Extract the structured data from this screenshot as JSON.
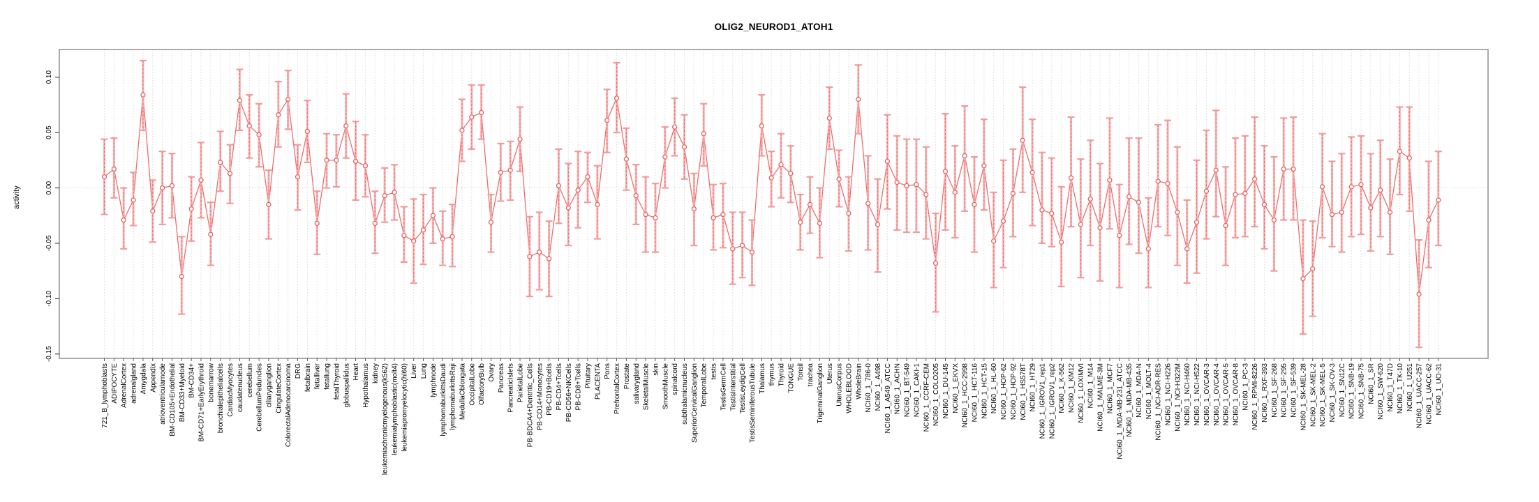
{
  "title": "OLIG2_NEUROD1_ATOH1",
  "y_axis": {
    "label": "activity",
    "ticks": [
      "0.10",
      "0.05",
      "0.00",
      "-0.05",
      "-0.10",
      "-0.15"
    ]
  },
  "colors": {
    "point_stroke": "#e85f5f",
    "segment": "#ef6b6b",
    "errorbar_stem": "#f8b0b0",
    "errorbar_dash": "#e96a6a",
    "errorbar_cap": "#f39b9b",
    "gridline": "#dadada",
    "zero_line": "#d9cfcf",
    "panel_border": "#8f8f8f",
    "axis_tick": "#444444",
    "text": "#000000",
    "background": "#ffffff"
  },
  "chart_data": {
    "type": "scatter",
    "subtype": "means-with-error-bars",
    "title": "OLIG2_NEUROD1_ATOH1",
    "xlabel": "",
    "ylabel": "activity",
    "ylim": [
      -0.155,
      0.125
    ],
    "yticks": [
      "0.10",
      "0.05",
      "0.00",
      "-0.05",
      "-0.10",
      "-0.15"
    ],
    "grid": {
      "vertical_per_category": true,
      "horizontal_zero_dotted": true
    },
    "legend": "none",
    "categories": [
      "721_B_lymphoblasts",
      "ADIPOCYTE",
      "AdrenalCortex",
      "adrenalgland",
      "Amygdala",
      "Appendix",
      "atrioventricularnode",
      "BM-CD105+Endothelial",
      "BM-CD33+Myeloid",
      "BM-CD34+",
      "BM-CD71+EarlyErythroid",
      "bonemarrow",
      "bronchialepithelialcells",
      "CardiacMyocytes",
      "caudatenucleus",
      "cerebellum",
      "CerebellumPeduncles",
      "ciliaryganglion",
      "CingulateCortex",
      "ColorectalAdenocarcinoma",
      "DRG",
      "fetalbrain",
      "fetalliver",
      "fetallung",
      "fetalThyroid",
      "globuspallidus",
      "Heart",
      "Hypothalamus",
      "kidney",
      "leukemiachronicmyelogenous(k562)",
      "leukemialymphoblastic(molt4)",
      "leukemiapromyelocytic(hl60)",
      "Liver",
      "Lung",
      "lymphnode",
      "lymphomaburkittsDaudi",
      "lymphomaburkittsRaji",
      "MedullaOblongata",
      "OccipitalLobe",
      "OlfactoryBulb",
      "Ovary",
      "Pancreas",
      "PancreaticIslets",
      "ParietalLobe",
      "PB-BDCA4+Dentritic_Cells",
      "PB-CD14+Monocytes",
      "PB-CD19+Bcells",
      "PB-CD4+Tcells",
      "PB-CD56+NKCells",
      "PB-CD8+Tcells",
      "Pituitary",
      "PLACENTA",
      "Pons",
      "PrefrontalCortex",
      "Prostate",
      "salivarygland",
      "SkeletalMuscle",
      "skin",
      "SmoothMuscle",
      "spinalcord",
      "subthalamicnucleus",
      "SuperiorCervicalGanglion",
      "TemporalLobe",
      "testis",
      "TestisGermCell",
      "TestisInterstitial",
      "TestisLeydigCell",
      "TestisSeminiferousTubule",
      "Thalamus",
      "thymus",
      "Thyroid",
      "TONGUE",
      "Tonsil",
      "trachea",
      "TrigeminalGanglion",
      "Uterus",
      "UterusCorpus",
      "WHOLEBLOOD",
      "WholeBrain",
      "NCI60_1_786-0",
      "NCI60_1_A498",
      "NCI60_1_A549_ATCC",
      "NCI60_1_ACHN",
      "NCI60_1_BT-549",
      "NCI60_1_CAKI-1",
      "NCI60_1_CCRF-CEM",
      "NCI60_1_COLO205",
      "NCI60_1_DU-145",
      "NCI60_1_EKVX",
      "NCI60_1_HCC-2998",
      "NCI60_1_HCT-116",
      "NCI60_1_HCT-15",
      "NCI60_1_HL-60",
      "NCI60_1_HOP-62",
      "NCI60_1_HOP-92",
      "NCI60_1_HS578T",
      "NCI60_1_HT29",
      "NCI60_1_IGROV1_rep1",
      "NCI60_1_IGROV1_rep2",
      "NCI60_1_K-562",
      "NCI60_1_KM12",
      "NCI60_1_LOXIMVI",
      "NCI60_1_M14",
      "NCI60_1_MALME-3M",
      "NCI60_1_MCF7",
      "NCI60_1_MDA-MB-231_ATCC",
      "NCI60_1_MDA-MB-435",
      "NCI60_1_MDA-N",
      "NCI60_1_MOLT-4",
      "NCI60_1_NCI-ADR-RES",
      "NCI60_1_NCI-H226",
      "NCI60_1_NCI-H322M",
      "NCI60_1_NCI-H460",
      "NCI60_1_NCI-H522",
      "NCI60_1_OVCAR-3",
      "NCI60_1_OVCAR-4",
      "NCI60_1_OVCAR-5",
      "NCI60_1_OVCAR-8",
      "NCI60_1_PC-3",
      "NCI60_1_RPMI-8226",
      "NCI60_1_RXF-393",
      "NCI60_1_SF-268",
      "NCI60_1_SF-295",
      "NCI60_1_SF-539",
      "NCI60_1_SK-MEL-28",
      "NCI60_1_SK-MEL-2",
      "NCI60_1_SK-MEL-5",
      "NCI60_1_SK-OV-3",
      "NCI60_1_SN12C",
      "NCI60_1_SNB-19",
      "NCI60_1_SNB-75",
      "NCI60_1_SR",
      "NCI60_1_SW-620",
      "NCI60_1_T47D",
      "NCI60_1_TK-10",
      "NCI60_1_U251",
      "NCI60_1_UACC-257",
      "NCI60_1_UACC-62",
      "NCI60_1_UO-31"
    ],
    "series": [
      {
        "name": "mean",
        "values": [
          0.01,
          0.017,
          -0.029,
          -0.011,
          0.084,
          -0.021,
          0.0,
          0.002,
          -0.08,
          -0.019,
          0.007,
          -0.042,
          0.023,
          0.013,
          0.079,
          0.056,
          0.048,
          -0.015,
          0.066,
          0.08,
          0.01,
          0.051,
          -0.032,
          0.025,
          0.025,
          0.056,
          0.024,
          0.02,
          -0.032,
          -0.007,
          -0.004,
          -0.043,
          -0.048,
          -0.038,
          -0.025,
          -0.046,
          -0.044,
          0.052,
          0.064,
          0.068,
          -0.031,
          0.014,
          0.016,
          0.044,
          -0.062,
          -0.058,
          -0.064,
          0.002,
          -0.018,
          -0.002,
          0.01,
          -0.015,
          0.061,
          0.081,
          0.026,
          -0.007,
          -0.024,
          -0.027,
          0.028,
          0.055,
          0.037,
          -0.019,
          0.049,
          -0.027,
          -0.024,
          -0.055,
          -0.052,
          -0.058,
          0.056,
          0.009,
          0.021,
          0.013,
          -0.031,
          -0.015,
          -0.032,
          0.063,
          0.008,
          -0.023,
          0.08,
          -0.014,
          -0.033,
          0.024,
          0.005,
          0.002,
          0.003,
          -0.006,
          -0.068,
          0.015,
          -0.004,
          0.029,
          -0.015,
          0.02,
          -0.048,
          -0.03,
          -0.005,
          0.043,
          0.014,
          -0.02,
          -0.023,
          -0.049,
          0.009,
          -0.033,
          -0.01,
          -0.036,
          0.007,
          -0.043,
          -0.008,
          -0.013,
          -0.055,
          0.006,
          0.004,
          -0.022,
          -0.055,
          -0.031,
          -0.003,
          0.016,
          -0.034,
          -0.006,
          -0.005,
          0.008,
          -0.015,
          -0.029,
          0.017,
          0.017,
          -0.082,
          -0.073,
          0.001,
          -0.024,
          -0.022,
          0.001,
          0.003,
          -0.018,
          -0.002,
          -0.022,
          0.033,
          0.027,
          -0.096,
          -0.029,
          -0.011
        ]
      },
      {
        "name": "lower_bound",
        "values": [
          -0.024,
          -0.009,
          -0.055,
          -0.034,
          0.052,
          -0.049,
          -0.033,
          -0.027,
          -0.114,
          -0.048,
          -0.027,
          -0.07,
          -0.003,
          -0.014,
          0.052,
          0.027,
          0.019,
          -0.046,
          0.037,
          0.053,
          -0.02,
          0.023,
          -0.06,
          0.0,
          0.001,
          0.027,
          -0.011,
          -0.008,
          -0.059,
          -0.031,
          -0.029,
          -0.067,
          -0.086,
          -0.069,
          -0.05,
          -0.07,
          -0.071,
          0.024,
          0.035,
          0.044,
          -0.058,
          -0.012,
          -0.011,
          0.015,
          -0.098,
          -0.092,
          -0.098,
          -0.032,
          -0.052,
          -0.036,
          -0.013,
          -0.046,
          0.032,
          0.05,
          -0.002,
          -0.033,
          -0.058,
          -0.058,
          0.0,
          0.029,
          0.008,
          -0.052,
          0.02,
          -0.056,
          -0.054,
          -0.087,
          -0.081,
          -0.088,
          0.029,
          -0.017,
          -0.009,
          -0.013,
          -0.056,
          -0.041,
          -0.063,
          0.035,
          -0.017,
          -0.057,
          0.049,
          -0.056,
          -0.076,
          -0.019,
          -0.038,
          -0.04,
          -0.04,
          -0.046,
          -0.112,
          -0.038,
          -0.045,
          -0.021,
          -0.058,
          -0.02,
          -0.09,
          -0.072,
          -0.044,
          -0.004,
          -0.034,
          -0.05,
          -0.053,
          -0.089,
          -0.035,
          -0.081,
          -0.052,
          -0.084,
          -0.037,
          -0.09,
          -0.051,
          -0.059,
          -0.09,
          -0.035,
          -0.043,
          -0.07,
          -0.086,
          -0.077,
          -0.046,
          -0.026,
          -0.07,
          -0.045,
          -0.044,
          -0.035,
          -0.055,
          -0.075,
          -0.029,
          -0.029,
          -0.132,
          -0.116,
          -0.045,
          -0.053,
          -0.058,
          -0.044,
          -0.042,
          -0.057,
          -0.044,
          -0.06,
          -0.006,
          -0.021,
          -0.144,
          -0.072,
          -0.052
        ]
      },
      {
        "name": "upper_bound",
        "values": [
          0.044,
          0.045,
          0.0,
          0.014,
          0.115,
          0.007,
          0.033,
          0.031,
          -0.044,
          0.01,
          0.041,
          -0.013,
          0.051,
          0.039,
          0.107,
          0.084,
          0.076,
          0.016,
          0.096,
          0.106,
          0.039,
          0.079,
          -0.003,
          0.049,
          0.048,
          0.085,
          0.06,
          0.048,
          -0.003,
          0.018,
          0.021,
          -0.017,
          -0.01,
          -0.006,
          0.0,
          -0.021,
          -0.015,
          0.08,
          0.093,
          0.093,
          -0.006,
          0.04,
          0.042,
          0.073,
          -0.026,
          -0.022,
          -0.03,
          0.035,
          0.022,
          0.033,
          0.032,
          0.02,
          0.089,
          0.113,
          0.054,
          0.021,
          0.01,
          0.004,
          0.055,
          0.081,
          0.066,
          0.013,
          0.076,
          0.003,
          0.004,
          -0.022,
          -0.022,
          -0.029,
          0.084,
          0.033,
          0.049,
          0.038,
          -0.006,
          0.01,
          0.0,
          0.091,
          0.034,
          0.01,
          0.111,
          0.029,
          0.008,
          0.066,
          0.047,
          0.044,
          0.044,
          0.037,
          -0.023,
          0.067,
          0.038,
          0.074,
          0.028,
          0.062,
          -0.004,
          0.025,
          0.035,
          0.091,
          0.062,
          0.032,
          0.027,
          0.001,
          0.064,
          0.026,
          0.043,
          0.022,
          0.063,
          0.003,
          0.045,
          0.045,
          -0.009,
          0.057,
          0.061,
          0.037,
          -0.011,
          0.025,
          0.052,
          0.07,
          0.019,
          0.045,
          0.047,
          0.064,
          0.038,
          0.028,
          0.063,
          0.064,
          -0.029,
          -0.03,
          0.049,
          0.024,
          0.031,
          0.046,
          0.047,
          0.031,
          0.043,
          0.026,
          0.073,
          0.073,
          -0.047,
          0.024,
          0.033
        ]
      }
    ]
  }
}
